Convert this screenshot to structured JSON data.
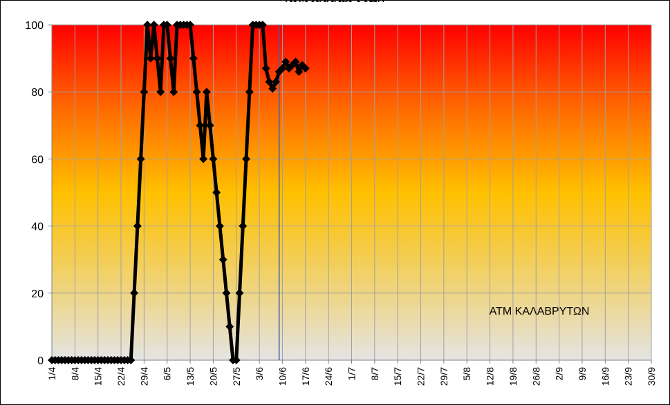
{
  "title": "ΑΤΜ ΚΑΛΑΒΡΥΤΩΝ",
  "chart_data": {
    "type": "line",
    "title": "ΑΤΜ ΚΑΛΑΒΡΥΤΩΝ",
    "annotation": "ΑΤΜ ΚΑΛΑΒΡΥΤΩΝ",
    "xlabel": "",
    "ylabel": "",
    "x_start": "1/4",
    "x_end": "30/9",
    "x_tick_labels": [
      "1/4",
      "8/4",
      "15/4",
      "22/4",
      "29/4",
      "6/5",
      "13/5",
      "20/5",
      "27/5",
      "3/6",
      "10/6",
      "17/6",
      "24/6",
      "1/7",
      "8/7",
      "15/7",
      "22/7",
      "29/7",
      "5/8",
      "12/8",
      "19/8",
      "26/8",
      "2/9",
      "9/9",
      "16/9",
      "23/9",
      "30/9"
    ],
    "y_ticks": [
      0,
      20,
      40,
      60,
      80,
      100
    ],
    "ylim": [
      0,
      100
    ],
    "grid": true,
    "vertical_marker": "9/6",
    "background": "vertical gradient: red top, orange, yellow, light gray bottom",
    "series": [
      {
        "color": "#000000",
        "marker": "diamond",
        "points": [
          [
            "1/4",
            0
          ],
          [
            "2/4",
            0
          ],
          [
            "3/4",
            0
          ],
          [
            "4/4",
            0
          ],
          [
            "5/4",
            0
          ],
          [
            "6/4",
            0
          ],
          [
            "7/4",
            0
          ],
          [
            "8/4",
            0
          ],
          [
            "9/4",
            0
          ],
          [
            "10/4",
            0
          ],
          [
            "11/4",
            0
          ],
          [
            "12/4",
            0
          ],
          [
            "13/4",
            0
          ],
          [
            "14/4",
            0
          ],
          [
            "15/4",
            0
          ],
          [
            "16/4",
            0
          ],
          [
            "17/4",
            0
          ],
          [
            "18/4",
            0
          ],
          [
            "19/4",
            0
          ],
          [
            "20/4",
            0
          ],
          [
            "21/4",
            0
          ],
          [
            "22/4",
            0
          ],
          [
            "23/4",
            0
          ],
          [
            "24/4",
            0
          ],
          [
            "25/4",
            0
          ],
          [
            "26/4",
            20
          ],
          [
            "27/4",
            40
          ],
          [
            "28/4",
            60
          ],
          [
            "29/4",
            80
          ],
          [
            "30/4",
            100
          ],
          [
            "1/5",
            90
          ],
          [
            "2/5",
            100
          ],
          [
            "3/5",
            90
          ],
          [
            "4/5",
            80
          ],
          [
            "5/5",
            100
          ],
          [
            "6/5",
            100
          ],
          [
            "7/5",
            90
          ],
          [
            "8/5",
            80
          ],
          [
            "9/5",
            100
          ],
          [
            "10/5",
            100
          ],
          [
            "11/5",
            100
          ],
          [
            "12/5",
            100
          ],
          [
            "13/5",
            100
          ],
          [
            "14/5",
            90
          ],
          [
            "15/5",
            80
          ],
          [
            "16/5",
            70
          ],
          [
            "17/5",
            60
          ],
          [
            "18/5",
            80
          ],
          [
            "19/5",
            70
          ],
          [
            "20/5",
            60
          ],
          [
            "21/5",
            50
          ],
          [
            "22/5",
            40
          ],
          [
            "23/5",
            30
          ],
          [
            "24/5",
            20
          ],
          [
            "25/5",
            10
          ],
          [
            "26/5",
            0
          ],
          [
            "27/5",
            0
          ],
          [
            "28/5",
            20
          ],
          [
            "29/5",
            40
          ],
          [
            "30/5",
            60
          ],
          [
            "31/5",
            80
          ],
          [
            "1/6",
            100
          ],
          [
            "2/6",
            100
          ],
          [
            "3/6",
            100
          ],
          [
            "4/6",
            100
          ],
          [
            "5/6",
            87
          ],
          [
            "6/6",
            83
          ],
          [
            "7/6",
            81
          ],
          [
            "8/6",
            83
          ],
          [
            "9/6",
            86
          ],
          [
            "10/6",
            87
          ],
          [
            "11/6",
            89
          ],
          [
            "12/6",
            87
          ],
          [
            "13/6",
            88
          ],
          [
            "14/6",
            89
          ],
          [
            "15/6",
            86
          ],
          [
            "16/6",
            88
          ],
          [
            "17/6",
            87
          ]
        ]
      }
    ]
  }
}
